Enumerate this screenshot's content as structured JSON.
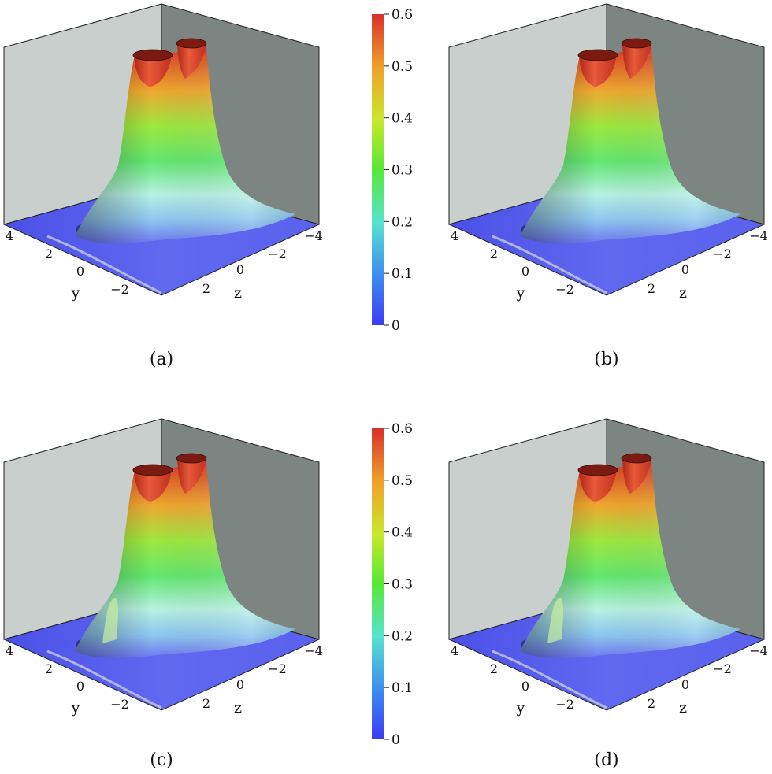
{
  "figure": {
    "panels": [
      {
        "label": "(a)",
        "ylabel": "y",
        "zlabel": "z",
        "y_ticks": [
          "4",
          "2",
          "0",
          "−2"
        ],
        "z_ticks": [
          "2",
          "0",
          "−2",
          "−4"
        ]
      },
      {
        "label": "(b)",
        "ylabel": "y",
        "zlabel": "z",
        "y_ticks": [
          "4",
          "2",
          "0",
          "−2"
        ],
        "z_ticks": [
          "2",
          "0",
          "−2",
          "−4"
        ]
      },
      {
        "label": "(c)",
        "ylabel": "y",
        "zlabel": "z",
        "y_ticks": [
          "4",
          "2",
          "0",
          "−2"
        ],
        "z_ticks": [
          "2",
          "0",
          "−2",
          "−4"
        ]
      },
      {
        "label": "(d)",
        "ylabel": "y",
        "zlabel": "z",
        "y_ticks": [
          "4",
          "2",
          "0",
          "−2"
        ],
        "z_ticks": [
          "2",
          "0",
          "−2",
          "−4"
        ]
      }
    ],
    "colorbars": [
      {
        "ticks": [
          "0.6",
          "0.5",
          "0.4",
          "0.3",
          "0.2",
          "0.1",
          "0"
        ]
      },
      {
        "ticks": [
          "0.6",
          "0.5",
          "0.4",
          "0.3",
          "0.2",
          "0.1",
          "0"
        ]
      }
    ]
  },
  "chart_data": [
    {
      "type": "surface",
      "title": "(a)",
      "xlabel": "y",
      "ylabel": "z",
      "xlim": [
        -4,
        4
      ],
      "ylim": [
        -4,
        4
      ],
      "vlim": [
        0,
        0.6
      ],
      "colormap": "jet",
      "x_ticks": [
        4,
        2,
        0,
        -2
      ],
      "y_ticks": [
        2,
        0,
        -2,
        -4
      ],
      "colorbar_ticks": [
        0,
        0.1,
        0.2,
        0.3,
        0.4,
        0.5,
        0.6
      ]
    },
    {
      "type": "surface",
      "title": "(b)",
      "xlabel": "y",
      "ylabel": "z",
      "xlim": [
        -4,
        4
      ],
      "ylim": [
        -4,
        4
      ],
      "vlim": [
        0,
        0.6
      ],
      "colormap": "jet",
      "x_ticks": [
        4,
        2,
        0,
        -2
      ],
      "y_ticks": [
        2,
        0,
        -2,
        -4
      ],
      "colorbar_ticks": [
        0,
        0.1,
        0.2,
        0.3,
        0.4,
        0.5,
        0.6
      ]
    },
    {
      "type": "surface",
      "title": "(c)",
      "xlabel": "y",
      "ylabel": "z",
      "xlim": [
        -4,
        4
      ],
      "ylim": [
        -4,
        4
      ],
      "vlim": [
        0,
        0.6
      ],
      "colormap": "jet",
      "x_ticks": [
        4,
        2,
        0,
        -2
      ],
      "y_ticks": [
        2,
        0,
        -2,
        -4
      ],
      "colorbar_ticks": [
        0,
        0.1,
        0.2,
        0.3,
        0.4,
        0.5,
        0.6
      ]
    },
    {
      "type": "surface",
      "title": "(d)",
      "xlabel": "y",
      "ylabel": "z",
      "xlim": [
        -4,
        4
      ],
      "ylim": [
        -4,
        4
      ],
      "vlim": [
        0,
        0.6
      ],
      "colormap": "jet",
      "x_ticks": [
        4,
        2,
        0,
        -2
      ],
      "y_ticks": [
        2,
        0,
        -2,
        -4
      ],
      "colorbar_ticks": [
        0,
        0.1,
        0.2,
        0.3,
        0.4,
        0.5,
        0.6
      ]
    }
  ],
  "colors": {
    "colormap_stops": [
      "#3b3bf5",
      "#3c8cf0",
      "#56e3d0",
      "#58e838",
      "#c8e82a",
      "#f2a02a",
      "#d8302a"
    ],
    "back_wall_left": "#c8cfcc",
    "back_wall_right": "#7d8583",
    "floor": "#5a60ee"
  }
}
